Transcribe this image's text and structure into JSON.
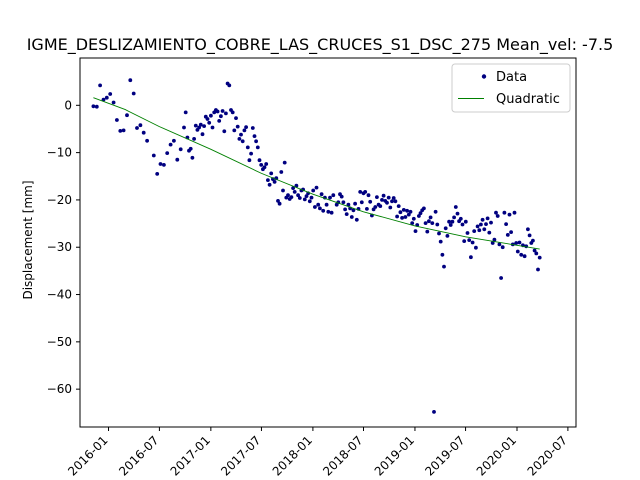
{
  "chart_data": {
    "type": "scatter",
    "title": "IGME_DESLIZAMIENTO_COBRE_LAS_CRUCES_S1_DSC_275     Mean_vel: -7.5",
    "xlabel": "",
    "ylabel": "Displacement [mm]",
    "xlim": [
      "2015-09-21",
      "2020-07-30"
    ],
    "ylim": [
      -68,
      10
    ],
    "grid": false,
    "legend_position": "top-right",
    "x_ticks": [
      "2016-01",
      "2016-07",
      "2017-01",
      "2017-07",
      "2018-01",
      "2018-07",
      "2019-01",
      "2019-07",
      "2020-01",
      "2020-07"
    ],
    "y_ticks": [
      0,
      -10,
      -20,
      -30,
      -40,
      -50,
      -60
    ],
    "series": [
      {
        "name": "Data",
        "kind": "scatter",
        "color": "#000080",
        "points": [
          [
            "2015-11-08",
            -0.2
          ],
          [
            "2015-11-20",
            -0.3
          ],
          [
            "2015-12-02",
            4.2
          ],
          [
            "2015-12-14",
            1.2
          ],
          [
            "2015-12-26",
            1.6
          ],
          [
            "2016-01-07",
            2.4
          ],
          [
            "2016-01-19",
            0.6
          ],
          [
            "2016-01-31",
            -3.1
          ],
          [
            "2016-02-12",
            -5.4
          ],
          [
            "2016-02-24",
            -5.3
          ],
          [
            "2016-03-07",
            -2.1
          ],
          [
            "2016-03-19",
            5.3
          ],
          [
            "2016-03-31",
            2.5
          ],
          [
            "2016-04-12",
            -4.8
          ],
          [
            "2016-04-24",
            -4.2
          ],
          [
            "2016-05-06",
            -5.8
          ],
          [
            "2016-05-18",
            -7.5
          ],
          [
            "2016-06-11",
            -10.6
          ],
          [
            "2016-06-23",
            -14.5
          ],
          [
            "2016-07-05",
            -12.4
          ],
          [
            "2016-07-17",
            -12.6
          ],
          [
            "2016-07-29",
            -10.1
          ],
          [
            "2016-08-10",
            -8.3
          ],
          [
            "2016-08-22",
            -7.5
          ],
          [
            "2016-09-03",
            -11.5
          ],
          [
            "2016-09-15",
            -9.3
          ],
          [
            "2016-09-27",
            -4.7
          ],
          [
            "2016-10-03",
            -1.5
          ],
          [
            "2016-10-09",
            -6.8
          ],
          [
            "2016-10-15",
            -9.6
          ],
          [
            "2016-10-21",
            -9.2
          ],
          [
            "2016-10-27",
            -11.1
          ],
          [
            "2016-11-02",
            -7.1
          ],
          [
            "2016-11-08",
            -4.3
          ],
          [
            "2016-11-14",
            -5.2
          ],
          [
            "2016-11-20",
            -4.7
          ],
          [
            "2016-11-26",
            -4.1
          ],
          [
            "2016-12-02",
            -6.1
          ],
          [
            "2016-12-08",
            -4.4
          ],
          [
            "2016-12-14",
            -2.4
          ],
          [
            "2016-12-20",
            -2.9
          ],
          [
            "2016-12-26",
            -3.7
          ],
          [
            "2017-01-01",
            -2.2
          ],
          [
            "2017-01-07",
            -4.7
          ],
          [
            "2017-01-13",
            -1.5
          ],
          [
            "2017-01-19",
            -1.0
          ],
          [
            "2017-01-25",
            -1.3
          ],
          [
            "2017-01-31",
            -3.3
          ],
          [
            "2017-02-06",
            -2.3
          ],
          [
            "2017-02-12",
            -1.2
          ],
          [
            "2017-02-18",
            -5.5
          ],
          [
            "2017-02-24",
            -1.7
          ],
          [
            "2017-03-02",
            4.6
          ],
          [
            "2017-03-08",
            4.2
          ],
          [
            "2017-03-14",
            -1.0
          ],
          [
            "2017-03-20",
            -1.5
          ],
          [
            "2017-03-26",
            -5.3
          ],
          [
            "2017-04-01",
            -2.7
          ],
          [
            "2017-04-07",
            -4.5
          ],
          [
            "2017-04-13",
            -7.1
          ],
          [
            "2017-04-19",
            -6.2
          ],
          [
            "2017-04-25",
            -7.6
          ],
          [
            "2017-05-01",
            -5.3
          ],
          [
            "2017-05-07",
            -4.6
          ],
          [
            "2017-05-13",
            -8.9
          ],
          [
            "2017-05-19",
            -11.6
          ],
          [
            "2017-05-25",
            -10.2
          ],
          [
            "2017-05-31",
            -4.8
          ],
          [
            "2017-06-06",
            -6.5
          ],
          [
            "2017-06-12",
            -7.6
          ],
          [
            "2017-06-18",
            -8.9
          ],
          [
            "2017-06-24",
            -11.6
          ],
          [
            "2017-06-30",
            -12.6
          ],
          [
            "2017-07-06",
            -13.5
          ],
          [
            "2017-07-12",
            -13.1
          ],
          [
            "2017-07-18",
            -12.4
          ],
          [
            "2017-07-24",
            -15.8
          ],
          [
            "2017-07-30",
            -16.8
          ],
          [
            "2017-08-05",
            -14.4
          ],
          [
            "2017-08-11",
            -15.6
          ],
          [
            "2017-08-17",
            -16.2
          ],
          [
            "2017-08-23",
            -15.4
          ],
          [
            "2017-08-29",
            -20.2
          ],
          [
            "2017-09-04",
            -20.8
          ],
          [
            "2017-09-10",
            -14.1
          ],
          [
            "2017-09-16",
            -18.0
          ],
          [
            "2017-09-22",
            -12.1
          ],
          [
            "2017-09-28",
            -19.5
          ],
          [
            "2017-10-04",
            -19.0
          ],
          [
            "2017-10-10",
            -19.8
          ],
          [
            "2017-10-16",
            -19.4
          ],
          [
            "2017-10-22",
            -17.5
          ],
          [
            "2017-10-28",
            -18.3
          ],
          [
            "2017-11-03",
            -17.0
          ],
          [
            "2017-11-09",
            -19.0
          ],
          [
            "2017-11-15",
            -19.6
          ],
          [
            "2017-11-21",
            -18.0
          ],
          [
            "2017-11-27",
            -17.8
          ],
          [
            "2017-12-03",
            -19.9
          ],
          [
            "2017-12-09",
            -19.2
          ],
          [
            "2017-12-15",
            -18.6
          ],
          [
            "2017-12-21",
            -20.3
          ],
          [
            "2017-12-27",
            -19.5
          ],
          [
            "2018-01-02",
            -18.0
          ],
          [
            "2018-01-08",
            -21.5
          ],
          [
            "2018-01-14",
            -17.4
          ],
          [
            "2018-01-20",
            -21.0
          ],
          [
            "2018-01-26",
            -21.8
          ],
          [
            "2018-02-01",
            -18.8
          ],
          [
            "2018-02-07",
            -22.3
          ],
          [
            "2018-02-13",
            -19.5
          ],
          [
            "2018-02-19",
            -21.0
          ],
          [
            "2018-02-25",
            -22.5
          ],
          [
            "2018-03-03",
            -19.5
          ],
          [
            "2018-03-09",
            -22.7
          ],
          [
            "2018-03-15",
            -19.0
          ],
          [
            "2018-03-27",
            -21.0
          ],
          [
            "2018-04-02",
            -20.5
          ],
          [
            "2018-04-08",
            -18.8
          ],
          [
            "2018-04-14",
            -19.3
          ],
          [
            "2018-04-20",
            -20.5
          ],
          [
            "2018-04-26",
            -22.0
          ],
          [
            "2018-05-02",
            -23.0
          ],
          [
            "2018-05-08",
            -21.0
          ],
          [
            "2018-05-14",
            -21.8
          ],
          [
            "2018-05-20",
            -23.6
          ],
          [
            "2018-05-26",
            -22.2
          ],
          [
            "2018-06-01",
            -20.8
          ],
          [
            "2018-06-07",
            -24.2
          ],
          [
            "2018-06-13",
            -21.9
          ],
          [
            "2018-06-19",
            -18.3
          ],
          [
            "2018-06-25",
            -20.5
          ],
          [
            "2018-07-01",
            -18.6
          ],
          [
            "2018-07-07",
            -18.3
          ],
          [
            "2018-07-13",
            -21.9
          ],
          [
            "2018-07-19",
            -19.0
          ],
          [
            "2018-07-25",
            -20.4
          ],
          [
            "2018-07-31",
            -23.3
          ],
          [
            "2018-08-06",
            -22.0
          ],
          [
            "2018-08-12",
            -21.5
          ],
          [
            "2018-08-18",
            -19.4
          ],
          [
            "2018-08-24",
            -21.0
          ],
          [
            "2018-08-30",
            -21.3
          ],
          [
            "2018-09-05",
            -20.0
          ],
          [
            "2018-09-11",
            -19.1
          ],
          [
            "2018-09-17",
            -20.2
          ],
          [
            "2018-09-23",
            -20.6
          ],
          [
            "2018-09-29",
            -19.5
          ],
          [
            "2018-10-05",
            -21.6
          ],
          [
            "2018-10-11",
            -20.3
          ],
          [
            "2018-10-17",
            -19.6
          ],
          [
            "2018-10-23",
            -20.3
          ],
          [
            "2018-10-29",
            -23.5
          ],
          [
            "2018-11-04",
            -21.3
          ],
          [
            "2018-11-10",
            -22.6
          ],
          [
            "2018-11-16",
            -23.8
          ],
          [
            "2018-11-22",
            -22.1
          ],
          [
            "2018-11-28",
            -23.6
          ],
          [
            "2018-12-04",
            -22.3
          ],
          [
            "2018-12-10",
            -23.1
          ],
          [
            "2018-12-16",
            -22.5
          ],
          [
            "2018-12-22",
            -24.9
          ],
          [
            "2018-12-28",
            -24.0
          ],
          [
            "2019-01-03",
            -26.6
          ],
          [
            "2019-01-09",
            -25.3
          ],
          [
            "2019-01-15",
            -23.4
          ],
          [
            "2019-01-21",
            -22.8
          ],
          [
            "2019-01-27",
            -22.2
          ],
          [
            "2019-02-02",
            -21.8
          ],
          [
            "2019-02-08",
            -24.9
          ],
          [
            "2019-02-14",
            -26.7
          ],
          [
            "2019-02-20",
            -24.5
          ],
          [
            "2019-02-26",
            -23.7
          ],
          [
            "2019-03-04",
            -24.9
          ],
          [
            "2019-03-10",
            -64.8
          ],
          [
            "2019-03-16",
            -22.5
          ],
          [
            "2019-03-22",
            -25.2
          ],
          [
            "2019-03-28",
            -27.1
          ],
          [
            "2019-04-03",
            -28.8
          ],
          [
            "2019-04-09",
            -31.6
          ],
          [
            "2019-04-15",
            -34.1
          ],
          [
            "2019-04-21",
            -26.0
          ],
          [
            "2019-04-27",
            -27.6
          ],
          [
            "2019-05-03",
            -24.6
          ],
          [
            "2019-05-09",
            -25.3
          ],
          [
            "2019-05-15",
            -24.6
          ],
          [
            "2019-05-21",
            -23.7
          ],
          [
            "2019-05-27",
            -21.5
          ],
          [
            "2019-06-02",
            -22.9
          ],
          [
            "2019-06-08",
            -24.5
          ],
          [
            "2019-06-14",
            -24.0
          ],
          [
            "2019-06-20",
            -25.2
          ],
          [
            "2019-06-26",
            -28.7
          ],
          [
            "2019-07-02",
            -24.6
          ],
          [
            "2019-07-08",
            -27.0
          ],
          [
            "2019-07-14",
            -28.5
          ],
          [
            "2019-07-20",
            -32.1
          ],
          [
            "2019-07-26",
            -29.0
          ],
          [
            "2019-08-01",
            -26.6
          ],
          [
            "2019-08-07",
            -30.1
          ],
          [
            "2019-08-13",
            -25.6
          ],
          [
            "2019-08-19",
            -26.4
          ],
          [
            "2019-08-25",
            -25.2
          ],
          [
            "2019-08-31",
            -24.2
          ],
          [
            "2019-09-06",
            -26.2
          ],
          [
            "2019-09-12",
            -25.1
          ],
          [
            "2019-09-18",
            -23.9
          ],
          [
            "2019-09-24",
            -26.9
          ],
          [
            "2019-09-30",
            -24.8
          ],
          [
            "2019-10-06",
            -29.1
          ],
          [
            "2019-10-12",
            -28.4
          ],
          [
            "2019-10-18",
            -22.7
          ],
          [
            "2019-10-24",
            -23.4
          ],
          [
            "2019-10-30",
            -29.4
          ],
          [
            "2019-11-05",
            -36.5
          ],
          [
            "2019-11-11",
            -30.0
          ],
          [
            "2019-11-17",
            -22.7
          ],
          [
            "2019-11-23",
            -25.1
          ],
          [
            "2019-11-29",
            -27.4
          ],
          [
            "2019-12-05",
            -23.1
          ],
          [
            "2019-12-11",
            -26.8
          ],
          [
            "2019-12-17",
            -29.4
          ],
          [
            "2019-12-23",
            -22.7
          ],
          [
            "2019-12-29",
            -29.1
          ],
          [
            "2020-01-04",
            -30.9
          ],
          [
            "2020-01-10",
            -29.0
          ],
          [
            "2020-01-16",
            -31.6
          ],
          [
            "2020-01-22",
            -29.6
          ],
          [
            "2020-01-28",
            -31.9
          ],
          [
            "2020-02-03",
            -29.8
          ],
          [
            "2020-02-09",
            -26.2
          ],
          [
            "2020-02-15",
            -27.5
          ],
          [
            "2020-02-21",
            -29.1
          ],
          [
            "2020-02-27",
            -28.6
          ],
          [
            "2020-03-04",
            -30.7
          ],
          [
            "2020-03-10",
            -31.3
          ],
          [
            "2020-03-16",
            -34.7
          ],
          [
            "2020-03-22",
            -32.2
          ]
        ]
      },
      {
        "name": "Quadratic",
        "kind": "line",
        "color": "#008000",
        "points": [
          [
            "2015-11-08",
            1.6
          ],
          [
            "2016-03-01",
            -0.9
          ],
          [
            "2016-07-01",
            -4.5
          ],
          [
            "2017-01-01",
            -9.3
          ],
          [
            "2017-07-01",
            -14.4
          ],
          [
            "2018-01-01",
            -18.8
          ],
          [
            "2018-07-01",
            -22.5
          ],
          [
            "2019-01-01",
            -25.5
          ],
          [
            "2019-07-01",
            -27.8
          ],
          [
            "2020-01-01",
            -29.6
          ],
          [
            "2020-03-22",
            -30.4
          ]
        ]
      }
    ]
  }
}
